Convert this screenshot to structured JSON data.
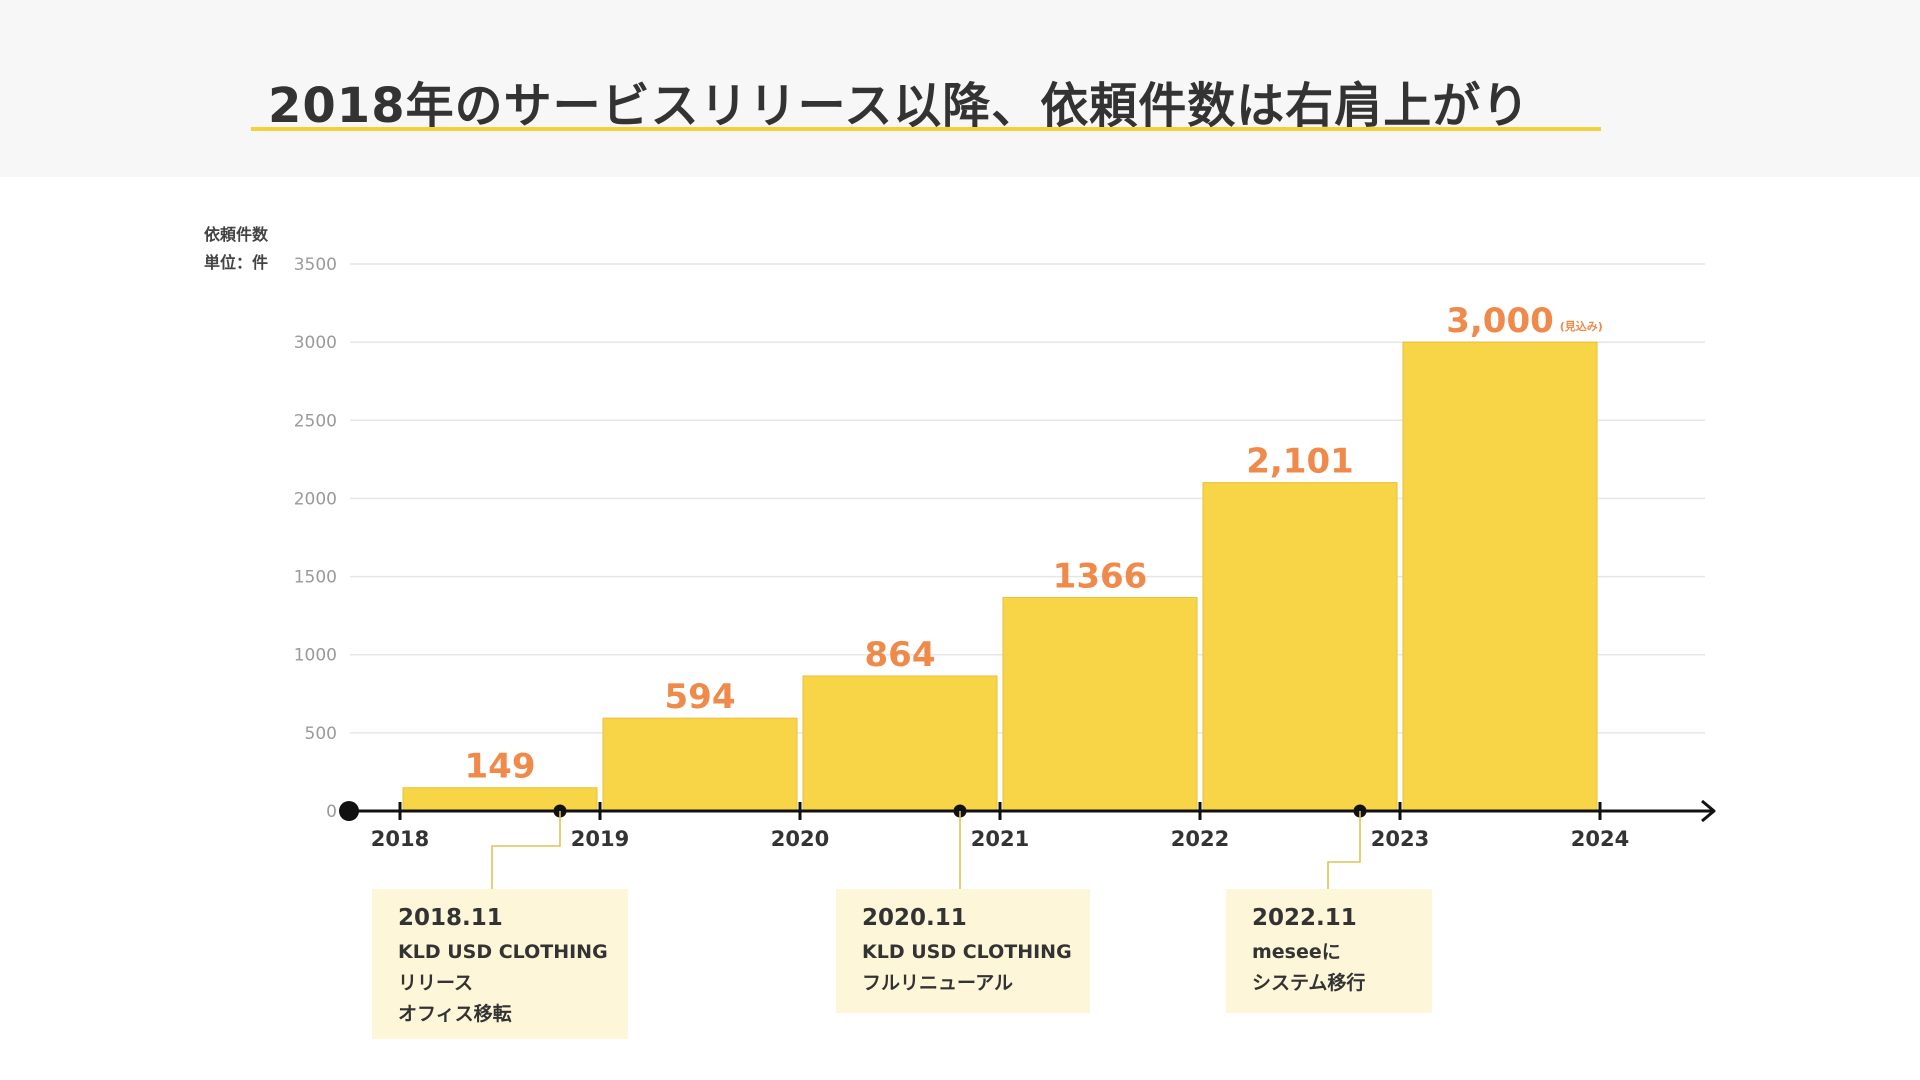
{
  "page": {
    "title": "2018年のサービスリリース以降、依頼件数は右肩上がり"
  },
  "chart_data": {
    "type": "bar",
    "title": "2018年のサービスリリース以降、依頼件数は右肩上がり",
    "ylabel": "依頼件数",
    "ylabel_unit": "単位：件",
    "ylim": [
      0,
      3500
    ],
    "y_ticks": [
      0,
      500,
      1000,
      1500,
      2000,
      2500,
      3000,
      3500
    ],
    "x_ticks": [
      "2018",
      "2019",
      "2020",
      "2021",
      "2022",
      "2023",
      "2024"
    ],
    "categories": [
      "2018",
      "2019",
      "2020",
      "2021",
      "2022",
      "2023"
    ],
    "values": [
      149,
      594,
      864,
      1366,
      2101,
      3000
    ],
    "data_labels": [
      "149",
      "594",
      "864",
      "1366",
      "2,101",
      "3,000"
    ],
    "label_suffixes": [
      "",
      "",
      "",
      "",
      "",
      "(見込み)"
    ],
    "grid": true,
    "legend": "none",
    "colors": {
      "bar": "#f7d547",
      "bar_border": "#e6c13a",
      "label": "#ef8a4a",
      "axis": "#111111",
      "grid": "#e6e6e6",
      "title_underline": "#f4d03f",
      "note_bg": "#fdf6d8",
      "connector": "#e2c25a"
    },
    "annotations": [
      {
        "x_year": 2018.8,
        "date": "2018.11",
        "lines": [
          "KLD USD CLOTHING",
          "リリース",
          "オフィス移転"
        ]
      },
      {
        "x_year": 2020.8,
        "date": "2020.11",
        "lines": [
          "KLD USD CLOTHING",
          "フルリニューアル"
        ]
      },
      {
        "x_year": 2022.8,
        "date": "2022.11",
        "lines": [
          "meseeに",
          "システム移行"
        ]
      }
    ]
  }
}
